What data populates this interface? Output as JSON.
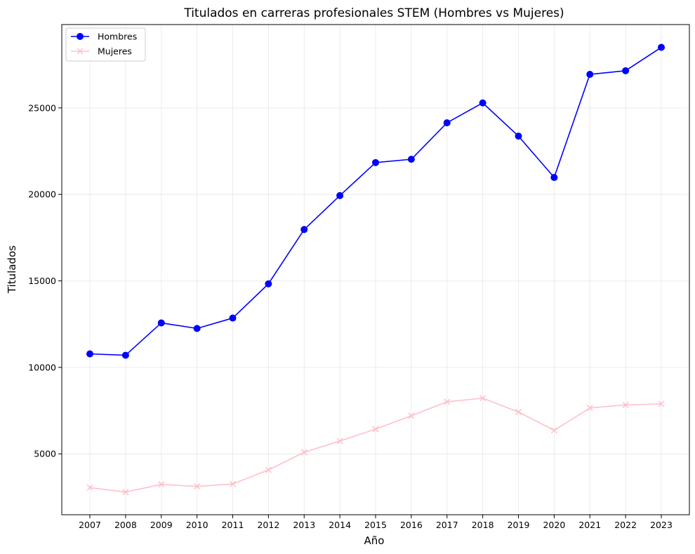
{
  "chart_data": {
    "type": "line",
    "title": "Titulados en carreras profesionales STEM (Hombres vs Mujeres)",
    "xlabel": "Año",
    "ylabel": "Titulados",
    "x": [
      "2007",
      "2008",
      "2009",
      "2010",
      "2011",
      "2012",
      "2013",
      "2014",
      "2015",
      "2016",
      "2017",
      "2018",
      "2019",
      "2020",
      "2021",
      "2022",
      "2023"
    ],
    "series": [
      {
        "name": "Hombres",
        "color": "#0000ff",
        "marker": "circle",
        "values": [
          10780,
          10700,
          12570,
          12250,
          12850,
          14830,
          17970,
          19930,
          21840,
          22030,
          24140,
          25290,
          23370,
          20980,
          26940,
          27150,
          28500
        ]
      },
      {
        "name": "Mujeres",
        "color": "#ffc0cb",
        "marker": "x",
        "values": [
          3050,
          2790,
          3230,
          3120,
          3260,
          4070,
          5090,
          5740,
          6430,
          7200,
          8010,
          8220,
          7420,
          6360,
          7650,
          7830,
          7890
        ]
      }
    ],
    "yticks": [
      5000,
      10000,
      15000,
      20000,
      25000
    ],
    "ylim": [
      1480,
      29820
    ],
    "grid": true,
    "legend_position": "top-left"
  }
}
